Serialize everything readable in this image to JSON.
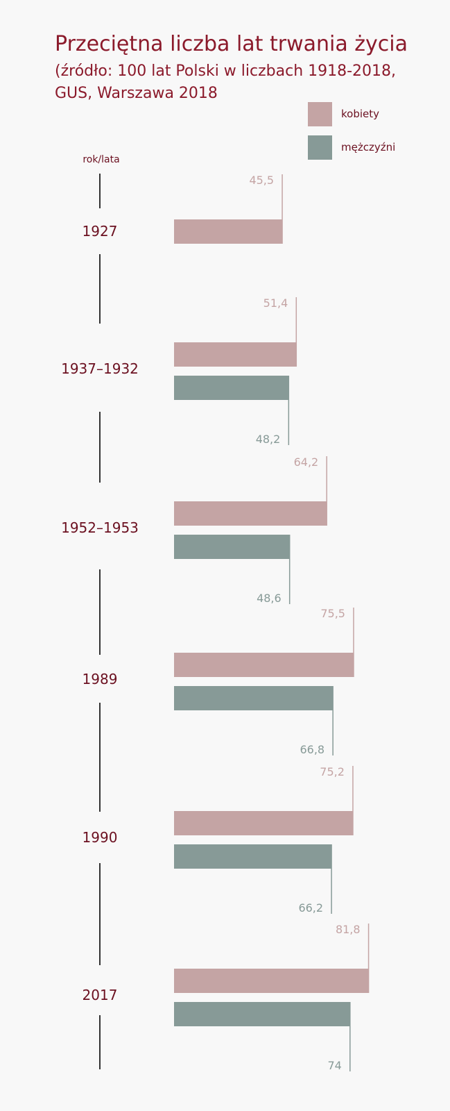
{
  "chart_data": {
    "type": "bar",
    "orientation": "horizontal",
    "title": "Przeciętna liczba lat trwania życia",
    "subtitle_lines": [
      "(źródło: 100 lat Polski w liczbach 1918-2018,",
      "GUS, Warszawa 2018"
    ],
    "axis_label": "rok/lata",
    "legend_position": "top-right",
    "categories": [
      "1927",
      "1937–1932",
      "1952–1953",
      "1989",
      "1990",
      "2017"
    ],
    "series": [
      {
        "name": "kobiety",
        "color": "#c4a4a4",
        "values": [
          45.5,
          51.4,
          64.2,
          75.5,
          75.2,
          81.8
        ],
        "labels": [
          "45,5",
          "51,4",
          "64,2",
          "75,5",
          "75,2",
          "81,8"
        ]
      },
      {
        "name": "mężczyźni",
        "color": "#879a97",
        "values": [
          null,
          48.2,
          48.6,
          66.8,
          66.2,
          74
        ],
        "labels": [
          "",
          "48,2",
          "48,6",
          "66,8",
          "66,2",
          "74"
        ]
      }
    ]
  },
  "colors": {
    "title": "#8b1a2b",
    "year": "#6b1020",
    "axis_line": "#333333",
    "women_label": "#c4a4a4",
    "men_label": "#879a97"
  }
}
